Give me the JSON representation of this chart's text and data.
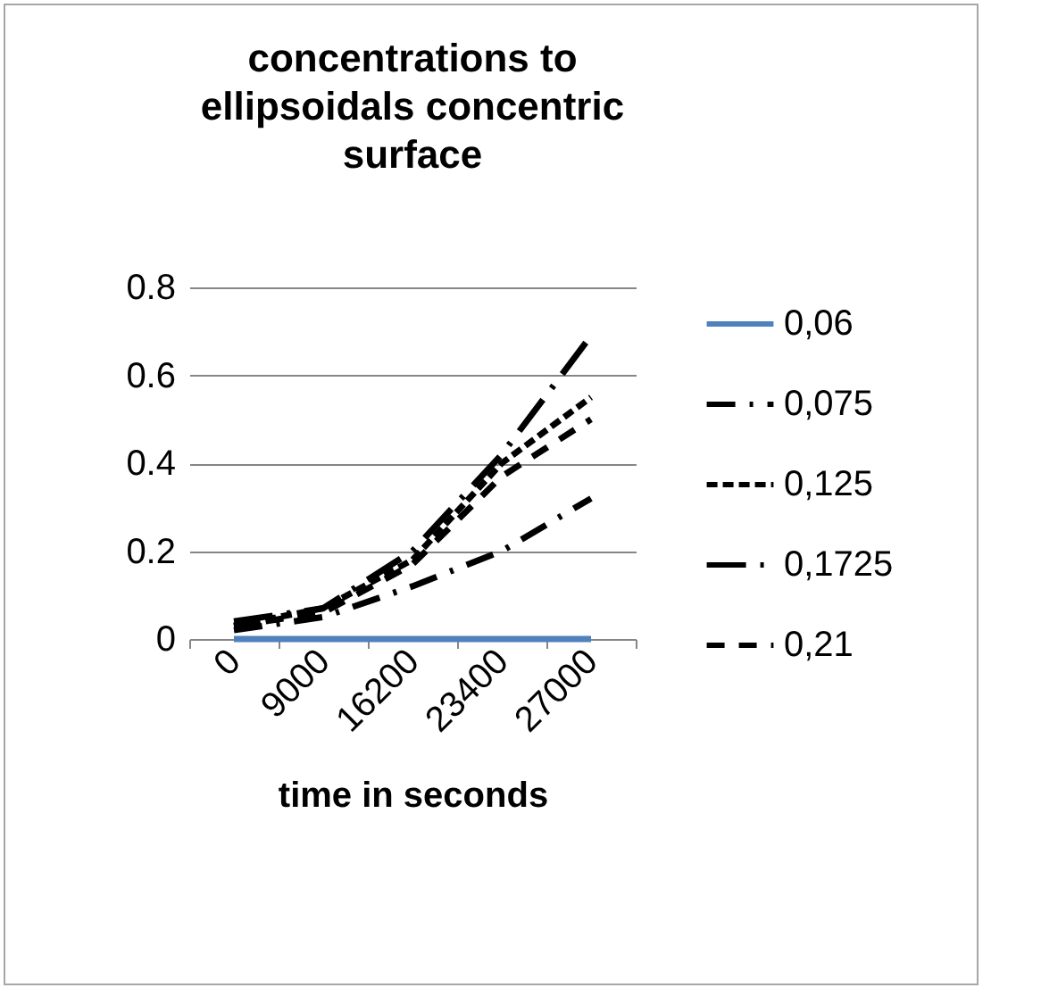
{
  "chart_data": {
    "type": "line",
    "title": "concentrations to ellipsoidals concentric surface",
    "xlabel": "time in seconds",
    "categories": [
      "0",
      "9000",
      "16200",
      "23400",
      "27000"
    ],
    "series": [
      {
        "name": "0,06",
        "color": "#4f81bd",
        "line_style": "solid",
        "values": [
          0,
          0,
          0,
          0,
          0
        ]
      },
      {
        "name": "0,075",
        "color": "#000000",
        "line_style": "dashed",
        "values": [
          0.02,
          0.05,
          0.12,
          0.2,
          0.32
        ]
      },
      {
        "name": "0,125",
        "color": "#000000",
        "line_style": "dotted",
        "values": [
          0.03,
          0.07,
          0.18,
          0.4,
          0.55
        ]
      },
      {
        "name": "0,1725",
        "color": "#000000",
        "line_style": "dashed",
        "values": [
          0.04,
          0.07,
          0.2,
          0.42,
          0.69
        ]
      },
      {
        "name": "0,21",
        "color": "#000000",
        "line_style": "dashed",
        "values": [
          0.03,
          0.06,
          0.17,
          0.37,
          0.5
        ]
      }
    ],
    "ylim": [
      0,
      0.8
    ],
    "yticks": [
      0,
      0.2,
      0.4,
      0.6,
      0.8
    ],
    "grid": "y",
    "legend": "right",
    "marker": "none"
  }
}
